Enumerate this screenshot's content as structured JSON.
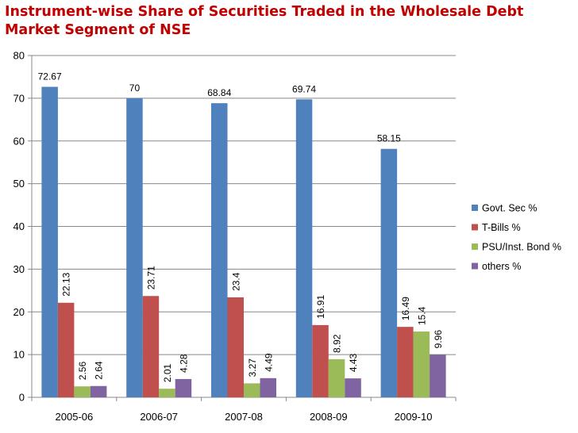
{
  "chart_data": {
    "type": "bar",
    "title": "Instrument-wise Share of Securities Traded in the Wholesale Debt Market Segment of NSE",
    "xlabel": "",
    "ylabel": "",
    "ylim": [
      0,
      80
    ],
    "yticks": [
      "0",
      "10",
      "20",
      "30",
      "40",
      "50",
      "60",
      "70",
      "80"
    ],
    "grid": true,
    "legend_position": "right",
    "categories": [
      "2005-06",
      "2006-07",
      "2007-08",
      "2008-09",
      "2009-10"
    ],
    "series": [
      {
        "name": "Govt. Sec %",
        "color": "#4f81bd",
        "values": [
          72.67,
          70,
          68.84,
          69.74,
          58.15
        ],
        "labels": [
          "72.67",
          "70",
          "68.84",
          "69.74",
          "58.15"
        ]
      },
      {
        "name": "T-Bills %",
        "color": "#c0504d",
        "values": [
          22.13,
          23.71,
          23.4,
          16.91,
          16.49
        ],
        "labels": [
          "22.13",
          "23.71",
          "23.4",
          "16.91",
          "16.49"
        ]
      },
      {
        "name": "PSU/Inst. Bond %",
        "color": "#9bbb59",
        "values": [
          2.56,
          2.01,
          3.27,
          8.92,
          15.4
        ],
        "labels": [
          "2.56",
          "2.01",
          "3.27",
          "8.92",
          "15.4"
        ]
      },
      {
        "name": "others %",
        "color": "#8064a2",
        "values": [
          2.64,
          4.28,
          4.49,
          4.43,
          9.96
        ],
        "labels": [
          "2.64",
          "4.28",
          "4.49",
          "4.43",
          "9.96"
        ]
      }
    ]
  }
}
